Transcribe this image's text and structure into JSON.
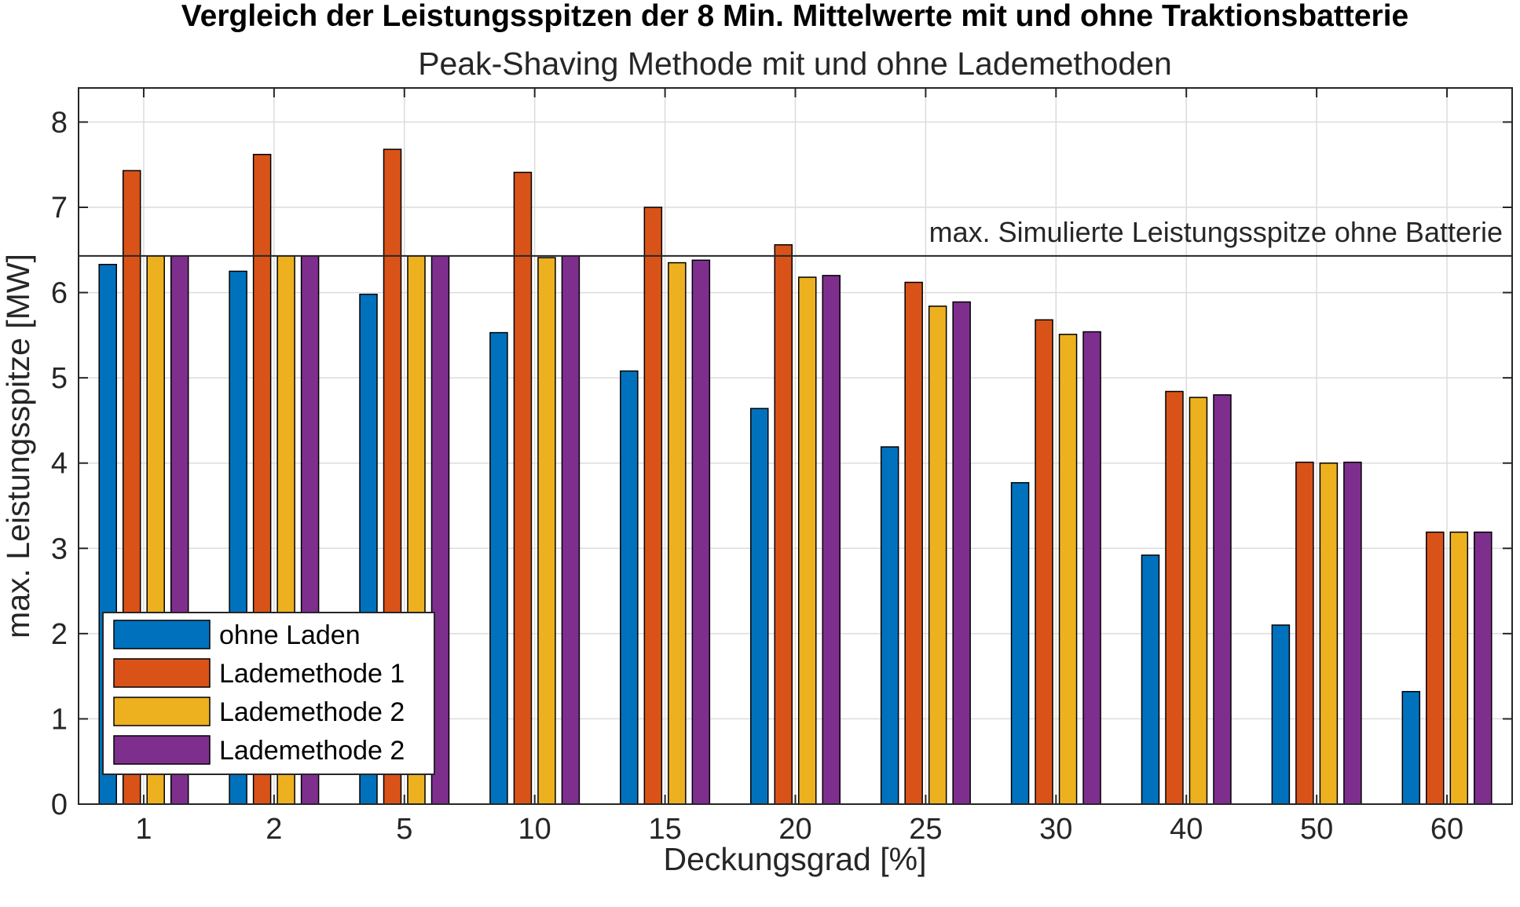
{
  "chart_data": {
    "type": "bar",
    "title": "Vergleich der Leistungsspitzen der 8 Min. Mittelwerte mit und ohne Traktionsbatterie",
    "subtitle": "Peak-Shaving Methode mit und ohne Lademethoden",
    "xlabel": "Deckungsgrad [%]",
    "ylabel": "max. Leistungsspitze [MW]",
    "ylim": [
      0,
      8.4
    ],
    "yticks": [
      0,
      1,
      2,
      3,
      4,
      5,
      6,
      7,
      8
    ],
    "grid": true,
    "legend_position": "bottom-left",
    "categories": [
      "1",
      "2",
      "5",
      "10",
      "15",
      "20",
      "25",
      "30",
      "40",
      "50",
      "60"
    ],
    "series": [
      {
        "name": "ohne Laden",
        "color": "#0072BD",
        "values": [
          6.33,
          6.25,
          5.98,
          5.53,
          5.08,
          4.64,
          4.19,
          3.77,
          2.92,
          2.1,
          1.32
        ]
      },
      {
        "name": "Lademethode 1",
        "color": "#D95319",
        "values": [
          7.43,
          7.62,
          7.68,
          7.41,
          7.0,
          6.56,
          6.12,
          5.68,
          4.84,
          4.01,
          3.19
        ]
      },
      {
        "name": "Lademethode 2",
        "color": "#EDB120",
        "values": [
          6.43,
          6.43,
          6.43,
          6.41,
          6.35,
          6.18,
          5.84,
          5.51,
          4.77,
          4.0,
          3.19
        ]
      },
      {
        "name": "Lademethode 2",
        "color": "#7E2F8E",
        "values": [
          6.43,
          6.43,
          6.43,
          6.43,
          6.38,
          6.2,
          5.89,
          5.54,
          4.8,
          4.01,
          3.19
        ]
      }
    ],
    "reference_line": {
      "value": 6.43,
      "label": "max. Simulierte Leistungsspitze ohne Batterie"
    }
  }
}
